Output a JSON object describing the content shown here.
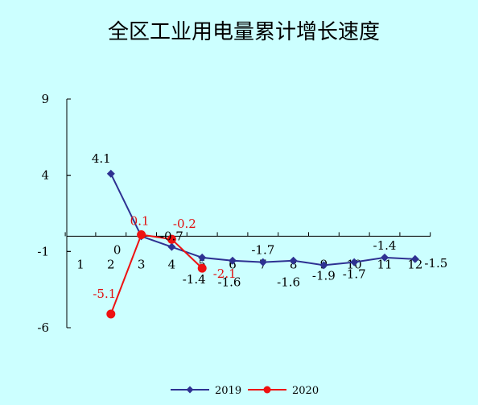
{
  "chart_data": {
    "type": "line",
    "title": "全区工业用电量累计增长速度",
    "y_ticks": [
      "9",
      "4",
      "-1",
      "-6"
    ],
    "ylim": [
      -6,
      9
    ],
    "y_tick_values": [
      9,
      4,
      -1,
      -6
    ],
    "x_categories": [
      "1",
      "2",
      "3",
      "4",
      "5",
      "6",
      "7",
      "8",
      "9",
      "10",
      "11",
      "12"
    ],
    "grid": false,
    "legend_position": "bottom",
    "series": [
      {
        "name": "2019",
        "color": "#2e3192",
        "marker": "diamond",
        "x": [
          2,
          3,
          4,
          5,
          6,
          7,
          8,
          9,
          10,
          11,
          12
        ],
        "values": [
          4.1,
          0,
          -0.7,
          -1.4,
          -1.6,
          -1.7,
          -1.6,
          -1.9,
          -1.7,
          -1.4,
          -1.5
        ],
        "labels": [
          "4.1",
          "0",
          "-0.7",
          "-1.4",
          "-1.6",
          "-1.7",
          "-1.6",
          "-1.9",
          "-1.7",
          "-1.4",
          "-1.5"
        ]
      },
      {
        "name": "2020",
        "color": "#ee1111",
        "marker": "circle",
        "x": [
          2,
          3,
          4,
          5
        ],
        "values": [
          -5.1,
          0.1,
          -0.2,
          -2.1
        ],
        "labels": [
          "-5.1",
          "0.1",
          "-0.2",
          "-2.1"
        ]
      }
    ]
  }
}
